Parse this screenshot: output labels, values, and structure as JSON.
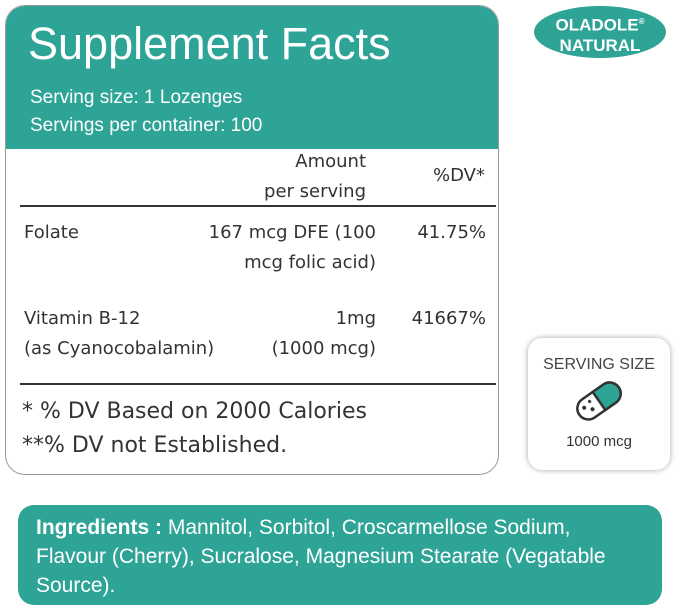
{
  "logo": {
    "line1": "OLADOLE",
    "mark": "®",
    "line2": "NATURAL"
  },
  "facts": {
    "title": "Supplement Facts",
    "serving_size": "Serving size: 1 Lozenges",
    "servings_per_container": "Servings per container: 100",
    "amount_header": [
      "Amount",
      "per serving"
    ],
    "dv_header": "%DV*",
    "rows": [
      {
        "name": [
          "Folate"
        ],
        "amount": [
          "167 mcg DFE (100",
          "mcg folic acid)"
        ],
        "dv": "41.75%"
      },
      {
        "name": [
          "Vitamin B-12",
          "(as Cyanocobalamin)"
        ],
        "amount": [
          "1mg",
          "(1000 mcg)"
        ],
        "dv": "41667%"
      }
    ],
    "footnotes": [
      "* % DV Based on 2000 Calories",
      "**% DV not Established."
    ]
  },
  "serving_box": {
    "title": "SERVING SIZE",
    "amount": "1000 mcg"
  },
  "ingredients": {
    "label": "Ingredients :",
    "text": " Mannitol, Sorbitol, Croscarmellose Sodium, Flavour (Cherry), Sucralose, Magnesium Stearate (Vegatable Source)."
  }
}
